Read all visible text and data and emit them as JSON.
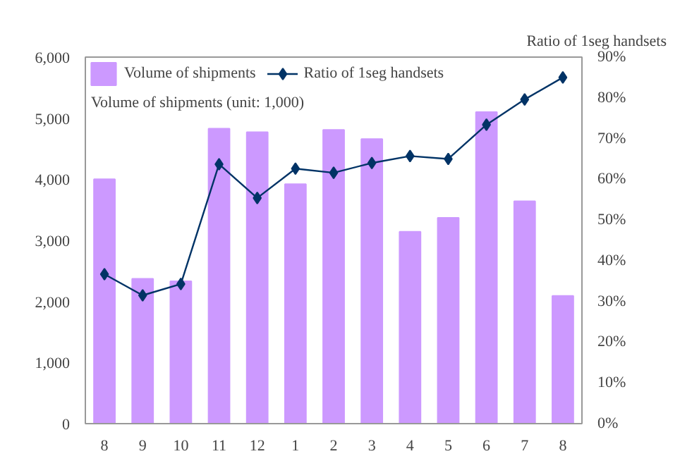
{
  "chart_data": {
    "type": "bar",
    "categories": [
      "8",
      "9",
      "10",
      "11",
      "12",
      "1",
      "2",
      "3",
      "4",
      "5",
      "6",
      "7",
      "8"
    ],
    "ylabel": "Volume of shipments (unit: 1,000)",
    "y2label": "Ratio of 1seg handsets",
    "series": [
      {
        "name": "Volume of shipments",
        "color": "#cc99ff",
        "values": [
          4000,
          2370,
          2330,
          4830,
          4770,
          3920,
          4810,
          4660,
          3140,
          3370,
          5100,
          3640,
          2090
        ]
      },
      {
        "name": "Ratio of 1seg handsets",
        "type": "line",
        "axis": "y2",
        "color": "#003366",
        "marker": "diamond",
        "values": [
          36.7,
          31.5,
          34.3,
          63.7,
          55.4,
          62.6,
          61.6,
          64,
          65.7,
          65,
          73.4,
          79.6,
          85
        ]
      }
    ],
    "ylim": [
      0,
      6000
    ],
    "yticks": [
      {
        "value": 0,
        "label": "0"
      },
      {
        "value": 1000,
        "label": "1,000"
      },
      {
        "value": 2000,
        "label": "2,000"
      },
      {
        "value": 3000,
        "label": "3,000"
      },
      {
        "value": 4000,
        "label": "4,000"
      },
      {
        "value": 5000,
        "label": "5,000"
      },
      {
        "value": 6000,
        "label": "6,000"
      }
    ],
    "y2lim": [
      0,
      90
    ],
    "y2ticks": [
      {
        "value": 0,
        "label": "0%"
      },
      {
        "value": 10,
        "label": "10%"
      },
      {
        "value": 20,
        "label": "20%"
      },
      {
        "value": 30,
        "label": "30%"
      },
      {
        "value": 40,
        "label": "40%"
      },
      {
        "value": 50,
        "label": "50%"
      },
      {
        "value": 60,
        "label": "60%"
      },
      {
        "value": 70,
        "label": "70%"
      },
      {
        "value": 80,
        "label": "80%"
      },
      {
        "value": 90,
        "label": "90%"
      }
    ],
    "grid": false,
    "legend": "top left"
  }
}
